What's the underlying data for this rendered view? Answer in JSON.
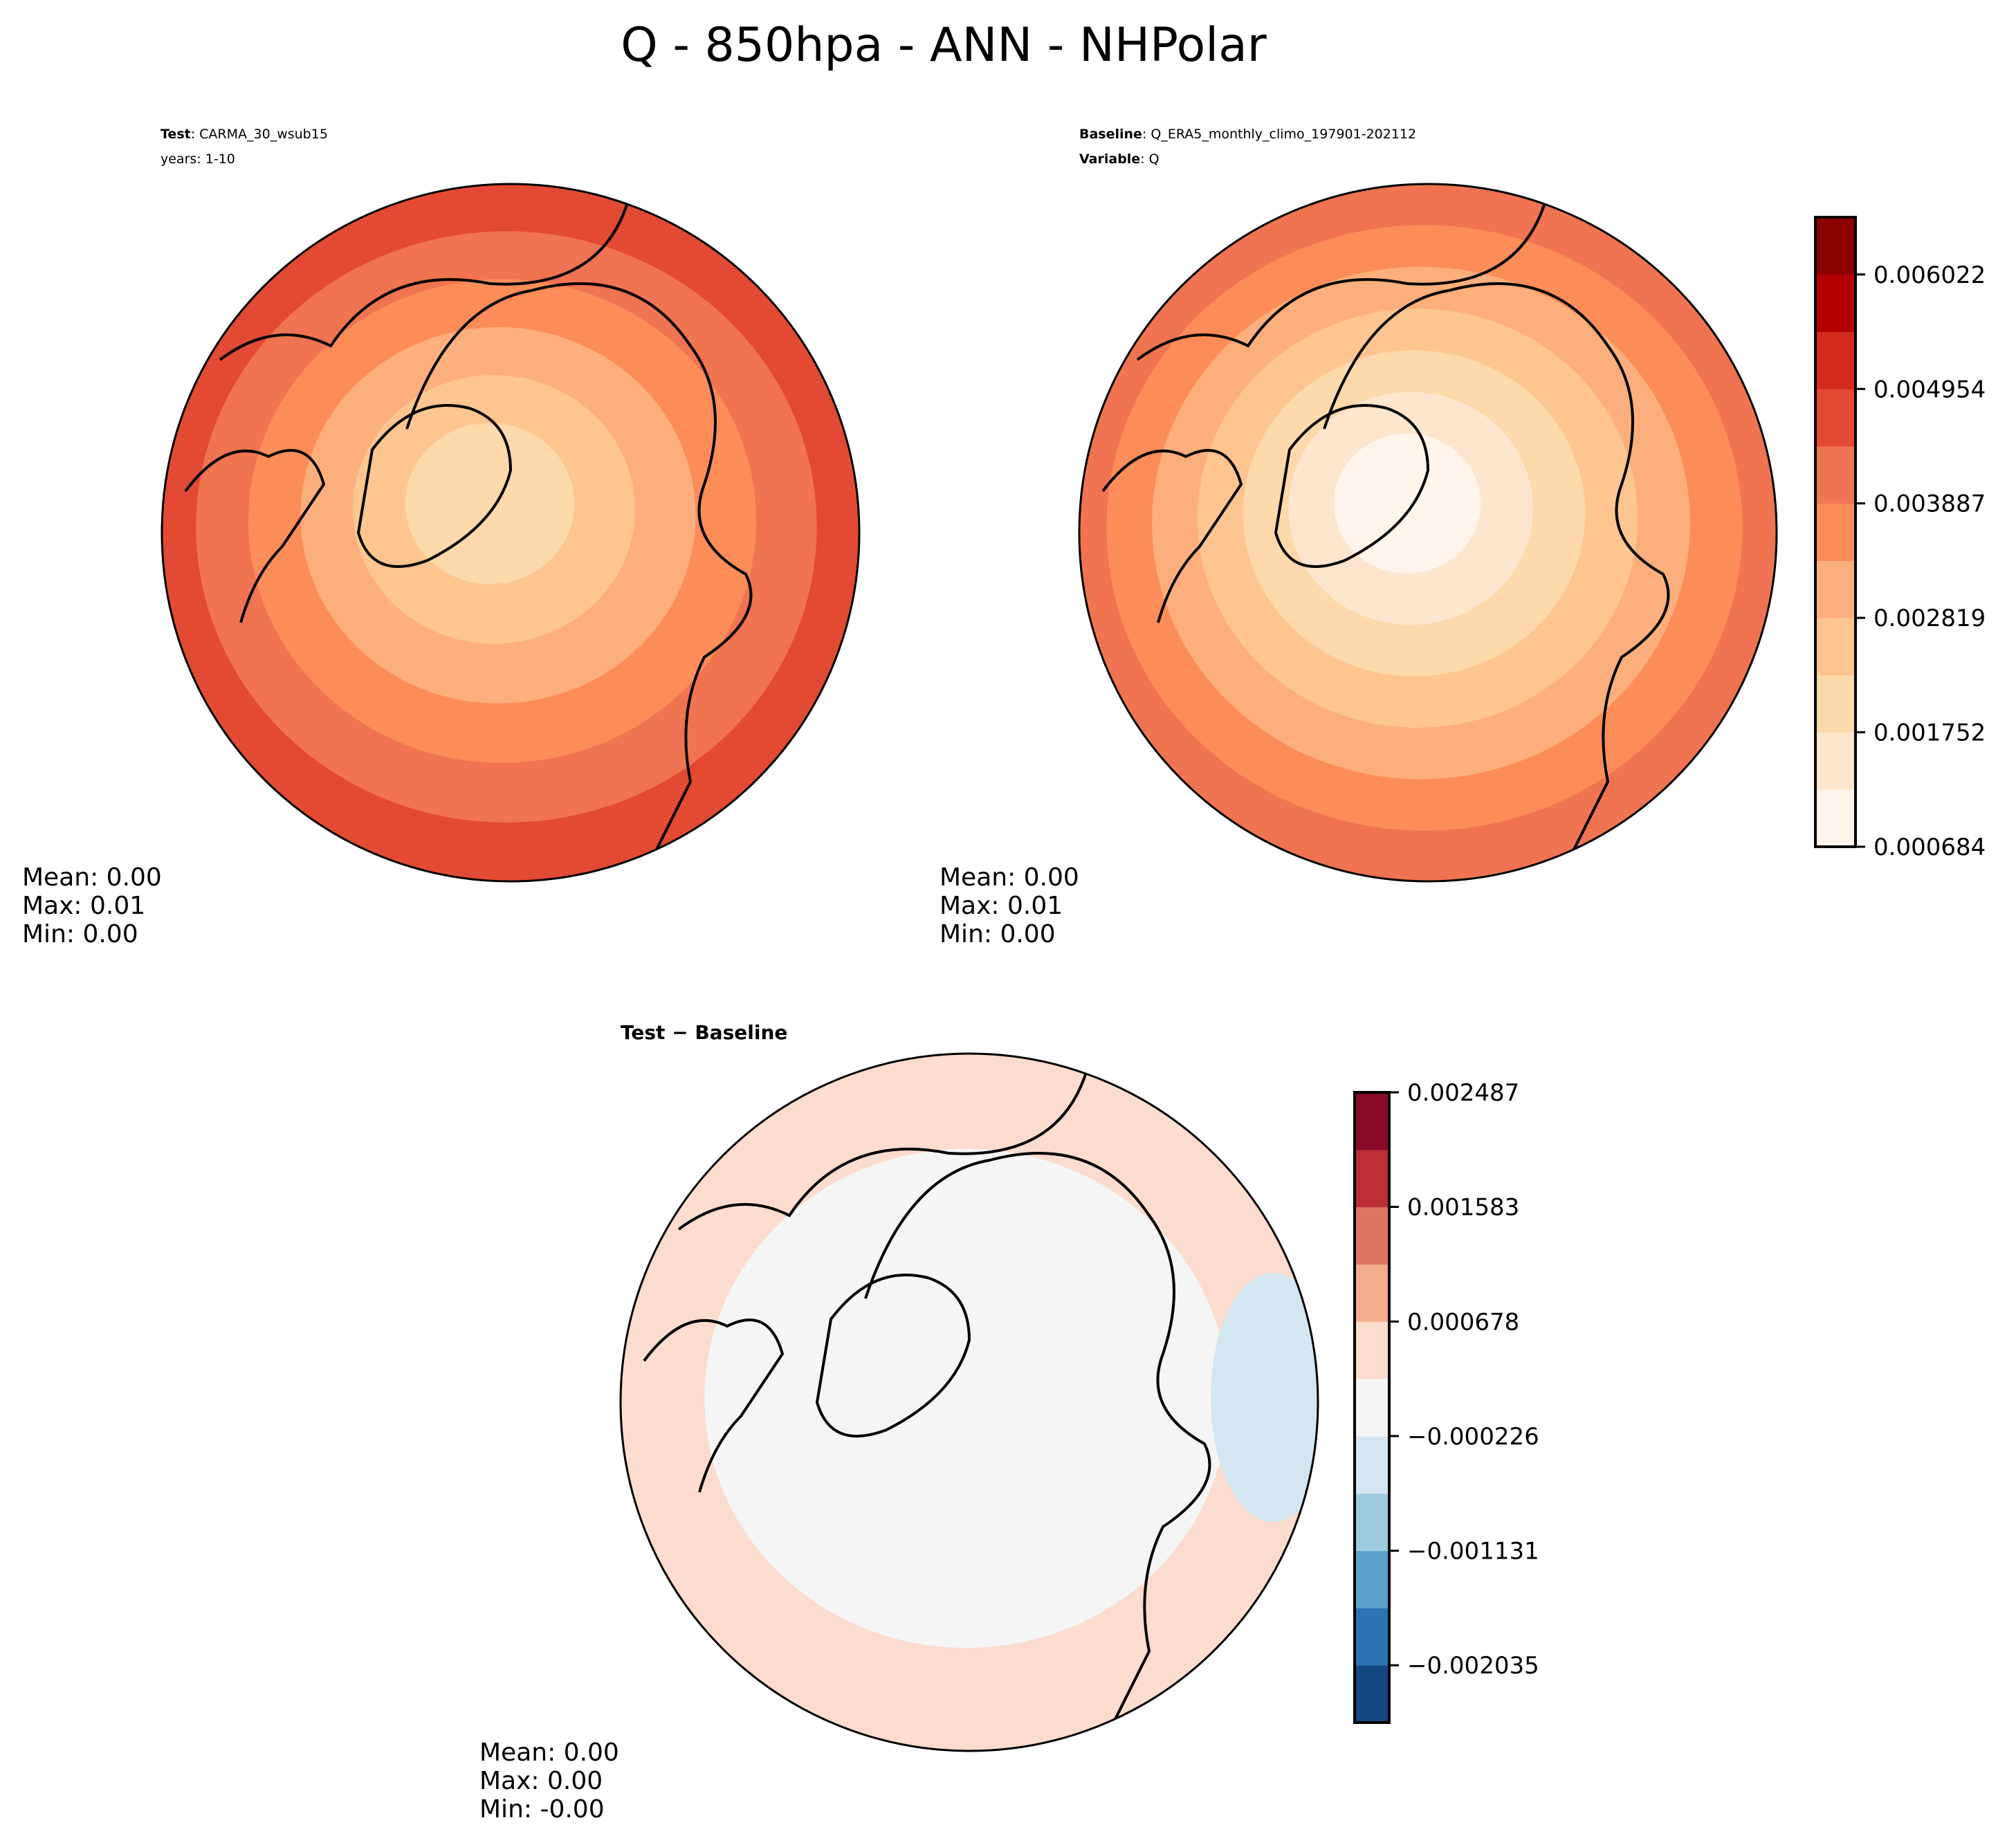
{
  "chart_data": {
    "type": "heatmap",
    "title": "Q - 850hpa - ANN - NHPolar",
    "panels": [
      {
        "name": "test",
        "header": [
          {
            "bold": "Test",
            "text": ": CARMA_30_wsub15"
          },
          {
            "bold": "",
            "text": "years: 1-10"
          }
        ],
        "stats": [
          "Mean:  0.00",
          "Max:  0.01",
          "Min:  0.00"
        ],
        "colors": [
          "#e34a33",
          "#fdbb84",
          "#fdd49e",
          "#fee8c8",
          "#f16a4a",
          "#d52a1e",
          "#fc8d59"
        ]
      },
      {
        "name": "baseline",
        "header": [
          {
            "bold": "Baseline",
            "text": ": Q_ERA5_monthly_climo_197901-202112"
          },
          {
            "bold": "Variable",
            "text": ": Q"
          }
        ],
        "stats": [
          "Mean:  0.00",
          "Max:  0.01",
          "Min:  0.00"
        ]
      },
      {
        "name": "difference",
        "subtitle": "Test − Baseline",
        "stats": [
          "Mean:  0.00",
          "Max:  0.00",
          "Min: -0.00"
        ]
      }
    ],
    "colorbars": [
      {
        "name": "abs",
        "levels": [
          "#fff5eb",
          "#fee6ce",
          "#fdd9ab",
          "#fdc590",
          "#fcaf7c",
          "#fc8d59",
          "#f07451",
          "#e34a33",
          "#d22b1d",
          "#b30000",
          "#8b0000"
        ],
        "ticks": [
          "0.006022",
          "0.004954",
          "0.003887",
          "0.002819",
          "0.001752",
          "0.000684"
        ],
        "range": [
          0.000684,
          0.006556
        ]
      },
      {
        "name": "diff",
        "levels": [
          "#144780",
          "#2c73b2",
          "#5aa1cb",
          "#9ecae1",
          "#d3e6f1",
          "#f5f5f5",
          "#fcdccf",
          "#f4ad8d",
          "#de7762",
          "#bc2f35",
          "#870a26"
        ],
        "ticks": [
          "0.002487",
          "0.001583",
          "0.000678",
          "−0.000226",
          "−0.001131",
          "−0.002035"
        ],
        "range": [
          -0.002487,
          0.002487
        ]
      }
    ]
  }
}
